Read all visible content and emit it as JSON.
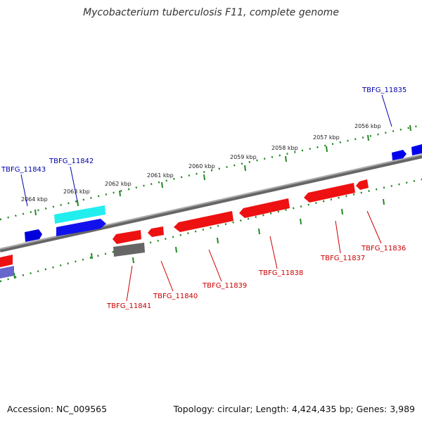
{
  "title": "Mycobacterium tuberculosis F11, complete genome",
  "footer": {
    "accession": "Accession: NC_009565",
    "summary": "Topology: circular; Length: 4,424,435 bp; Genes: 3,989"
  },
  "scale_labels": [
    "2064 kbp",
    "2063 kbp",
    "2062 kbp",
    "2061 kbp",
    "2060 kbp",
    "2059 kbp",
    "2058 kbp",
    "2057 kbp",
    "2056 kbp"
  ],
  "genes_forward": [
    "TBFG_11843",
    "TBFG_11842",
    "TBFG_11835"
  ],
  "genes_reverse": [
    "TBFG_11841",
    "TBFG_11840",
    "TBFG_11839",
    "TBFG_11838",
    "TBFG_11837",
    "TBFG_11836"
  ],
  "colors": {
    "backbone": "#888888",
    "forward_gene": "#0000ee",
    "forward_label": "#0000aa",
    "reverse_gene": "#ee0000",
    "reverse_label": "#cc0000",
    "cyan_feature": "#22eeee",
    "gray_feature": "#666666",
    "scale_ticks": "#228822"
  }
}
